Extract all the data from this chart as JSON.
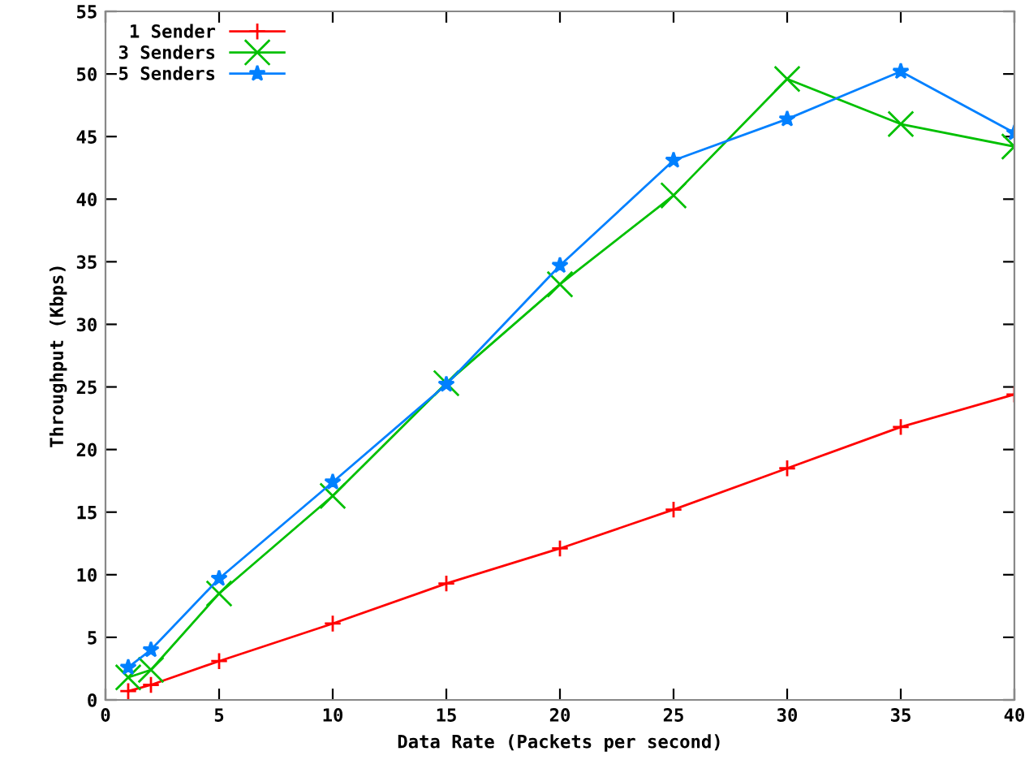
{
  "chart_data": {
    "type": "line",
    "xlabel": "Data Rate (Packets per second)",
    "ylabel": "Throughput (Kbps)",
    "x": [
      1,
      2,
      5,
      10,
      15,
      20,
      25,
      30,
      35,
      40
    ],
    "series": [
      {
        "name": "1 Sender",
        "color": "#ff0000",
        "marker": "cross",
        "values": [
          0.7,
          1.2,
          3.1,
          6.1,
          9.3,
          12.1,
          15.2,
          18.5,
          21.8,
          24.4
        ]
      },
      {
        "name": "3 Senders",
        "color": "#00c000",
        "marker": "x",
        "values": [
          1.8,
          2.4,
          8.5,
          16.3,
          25.3,
          33.2,
          40.3,
          49.6,
          46.0,
          44.2
        ]
      },
      {
        "name": "5 Senders",
        "color": "#0080ff",
        "marker": "star",
        "values": [
          2.6,
          4.0,
          9.7,
          17.4,
          25.2,
          34.7,
          43.1,
          46.4,
          50.2,
          45.3
        ]
      }
    ],
    "xlim": [
      0,
      40
    ],
    "xticks": [
      0,
      5,
      10,
      15,
      20,
      25,
      30,
      35,
      40
    ],
    "ylim": [
      0,
      55
    ],
    "yticks": [
      0,
      5,
      10,
      15,
      20,
      25,
      30,
      35,
      40,
      45,
      50,
      55
    ],
    "legend": "top left",
    "grid": false,
    "line_style": "solid"
  }
}
